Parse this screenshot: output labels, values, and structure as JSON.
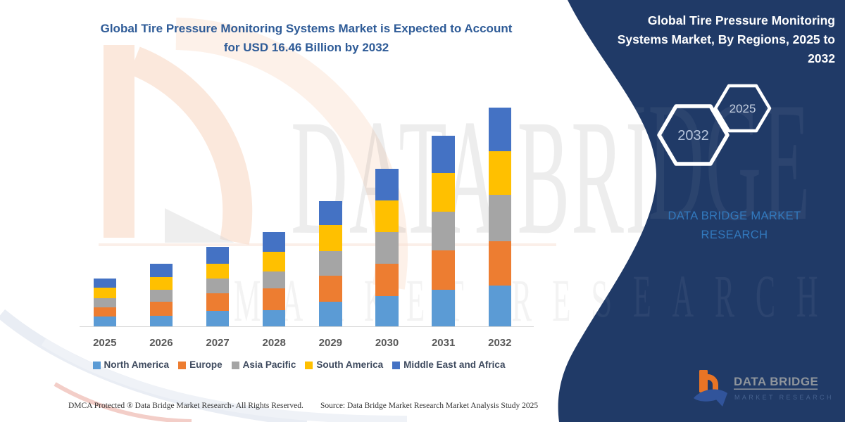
{
  "left_title": {
    "lines": [
      "Global Tire Pressure Monitoring Systems Market is Expected to Account",
      "for USD 16.46 Billion by 2032"
    ],
    "color": "#2E5B97"
  },
  "panel": {
    "bg": "#203A67",
    "title_lines": [
      "Global Tire Pressure Monitoring",
      "Systems Market, By Regions, 2025 to",
      "2032"
    ],
    "hexagons": [
      {
        "label": "2032"
      },
      {
        "label": "2025"
      }
    ],
    "brand_text": "DATA BRIDGE MARKET RESEARCH",
    "brand_color": "#3279BE"
  },
  "watermark": {
    "line1": "DATA BRIDGE",
    "line2": "MARKET RESEARCH"
  },
  "chart_data": {
    "type": "bar",
    "stacked": true,
    "title": "Global Tire Pressure Monitoring Systems Market is Expected to Account for USD 16.46 Billion by 2032",
    "unit": "USD Billion",
    "categories": [
      "2025",
      "2026",
      "2027",
      "2028",
      "2029",
      "2030",
      "2031",
      "2032"
    ],
    "series": [
      {
        "name": "North America",
        "color": "#5B9BD5",
        "values": [
          0.77,
          0.86,
          1.22,
          1.29,
          1.88,
          2.31,
          2.81,
          3.13
        ]
      },
      {
        "name": "Europe",
        "color": "#ED7D31",
        "values": [
          0.72,
          1.02,
          1.29,
          1.61,
          1.96,
          2.42,
          2.92,
          3.31
        ]
      },
      {
        "name": "Asia Pacific",
        "color": "#A5A5A5",
        "values": [
          0.66,
          0.91,
          1.13,
          1.26,
          1.88,
          2.42,
          2.95,
          3.46
        ]
      },
      {
        "name": "South America",
        "color": "#FFC000",
        "values": [
          0.82,
          0.97,
          1.11,
          1.5,
          1.93,
          2.36,
          2.86,
          3.31
        ]
      },
      {
        "name": "Middle East and Africa",
        "color": "#4472C4",
        "values": [
          0.67,
          0.97,
          1.27,
          1.48,
          1.79,
          2.36,
          2.83,
          3.26
        ]
      }
    ],
    "totals_by_year": [
      3.64,
      4.73,
      6.02,
      7.14,
      9.44,
      11.87,
      14.37,
      16.46
    ],
    "highlight_value_2032": "USD 16.46 Billion",
    "xlabel": "",
    "ylabel": "",
    "y_axis_visible": false,
    "grid": false,
    "legend_position": "bottom"
  },
  "footer": {
    "left": "DMCA Protected ® Data Bridge Market Research-  All Rights Reserved.",
    "source": "Source: Data Bridge Market Research  Market Analysis Study 2025"
  },
  "logo": {
    "name": "DATA BRIDGE",
    "subtitle": "MARKET RESEARCH"
  }
}
